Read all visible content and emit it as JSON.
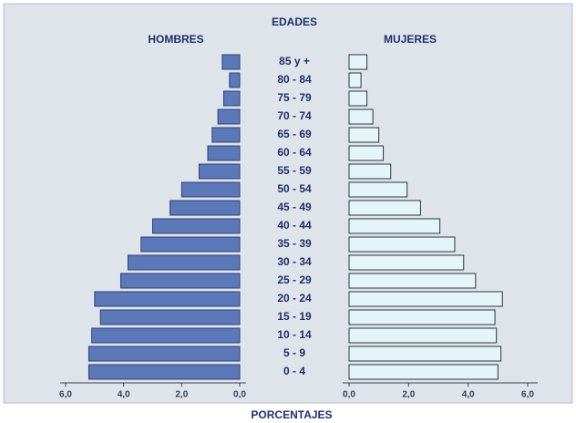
{
  "chart_data": {
    "type": "pyramid",
    "title": "EDADES",
    "x_label": "PORCENTAJES",
    "categories": [
      "85 y +",
      "80 - 84",
      "75 - 79",
      "70 - 74",
      "65 - 69",
      "60 - 64",
      "55 - 59",
      "50 - 54",
      "45 - 49",
      "40 - 44",
      "35 - 39",
      "30 - 34",
      "25 - 29",
      "20 - 24",
      "15 - 19",
      "10 - 14",
      "5 - 9",
      "0 - 4"
    ],
    "series": [
      {
        "name": "HOMBRES",
        "color": "#5b78b9",
        "side": "left",
        "values": [
          0.6,
          0.35,
          0.55,
          0.75,
          0.95,
          1.1,
          1.4,
          2.0,
          2.4,
          3.0,
          3.4,
          3.85,
          4.1,
          5.0,
          4.8,
          5.1,
          5.2,
          5.2
        ]
      },
      {
        "name": "MUJERES",
        "color": "#e4f5f7",
        "side": "right",
        "values": [
          0.6,
          0.4,
          0.6,
          0.8,
          1.0,
          1.15,
          1.4,
          1.95,
          2.4,
          3.05,
          3.55,
          3.85,
          4.25,
          5.15,
          4.9,
          4.95,
          5.1,
          5.0
        ]
      }
    ],
    "xlim": [
      0,
      6
    ],
    "xticks_left": [
      {
        "value": 6,
        "label": "6,0"
      },
      {
        "value": 4,
        "label": "4,0"
      },
      {
        "value": 2,
        "label": "2,0"
      },
      {
        "value": 0,
        "label": "0,0"
      }
    ],
    "xticks_right": [
      {
        "value": 0,
        "label": "0,0"
      },
      {
        "value": 2,
        "label": "2,0"
      },
      {
        "value": 4,
        "label": "4,0"
      },
      {
        "value": 6,
        "label": "6,0"
      }
    ]
  }
}
